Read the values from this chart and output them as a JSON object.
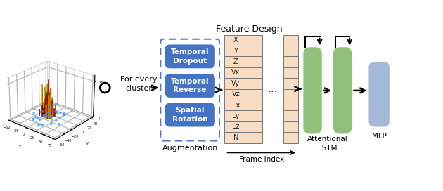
{
  "title": "Feature Design",
  "aug_label": "Augmentation",
  "frame_label": "Frame Index",
  "aug_boxes": [
    "Temporal\nDropout",
    "Temporal\nReverse",
    "Spatial\nRotation"
  ],
  "aug_box_color": "#4472C4",
  "aug_box_text_color": "#FFFFFF",
  "feature_labels": [
    "X",
    "Y",
    "Z",
    "Vx",
    "Vy",
    "Vz",
    "Lx",
    "Ly",
    "Lz",
    "N"
  ],
  "feature_col_color": "#F9DCC4",
  "lstm_color": "#90C07A",
  "mlp_color": "#A4B8D8",
  "cluster_label": "For every\ncluster",
  "attentional_label": "Attentional\nLSTM",
  "mlp_label": "MLP",
  "dots": "...",
  "bg_color": "#FFFFFF",
  "aug_border_color": "#5577CC"
}
